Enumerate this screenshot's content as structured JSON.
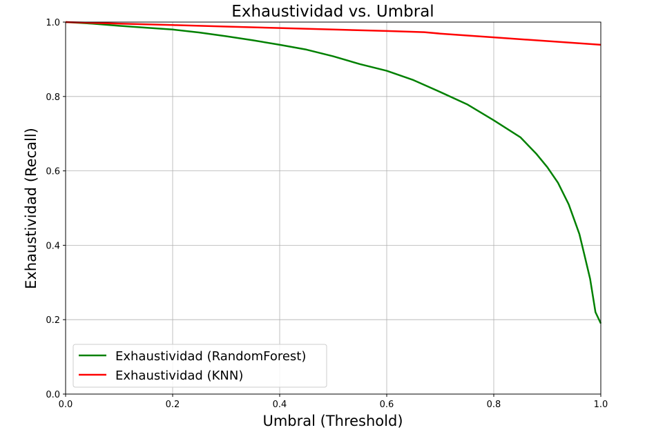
{
  "chart_data": {
    "type": "line",
    "title": "Exhaustividad vs. Umbral",
    "xlabel": "Umbral (Threshold)",
    "ylabel": "Exhaustividad (Recall)",
    "xlim": [
      0,
      1
    ],
    "ylim": [
      0,
      1
    ],
    "xticks": [
      "0.0",
      "0.2",
      "0.4",
      "0.6",
      "0.8",
      "1.0"
    ],
    "yticks": [
      "0.0",
      "0.2",
      "0.4",
      "0.6",
      "0.8",
      "1.0"
    ],
    "grid": true,
    "legend_position": "lower-left",
    "series": [
      {
        "name": "Exhaustividad (RandomForest)",
        "color": "#008000",
        "x": [
          0.0,
          0.05,
          0.1,
          0.15,
          0.2,
          0.25,
          0.3,
          0.35,
          0.4,
          0.45,
          0.5,
          0.55,
          0.6,
          0.65,
          0.7,
          0.75,
          0.8,
          0.85,
          0.88,
          0.9,
          0.92,
          0.94,
          0.95,
          0.96,
          0.97,
          0.98,
          0.99,
          1.0
        ],
        "y": [
          1.0,
          0.996,
          0.99,
          0.985,
          0.98,
          0.972,
          0.962,
          0.951,
          0.939,
          0.926,
          0.908,
          0.887,
          0.869,
          0.844,
          0.812,
          0.779,
          0.736,
          0.69,
          0.645,
          0.61,
          0.568,
          0.51,
          0.47,
          0.43,
          0.37,
          0.31,
          0.22,
          0.19
        ]
      },
      {
        "name": "Exhaustividad (KNN)",
        "color": "#ff0000",
        "x": [
          0.0,
          0.1,
          0.2,
          0.3,
          0.4,
          0.5,
          0.6,
          0.67,
          0.7,
          0.8,
          0.9,
          1.0
        ],
        "y": [
          1.0,
          0.996,
          0.992,
          0.988,
          0.984,
          0.98,
          0.976,
          0.973,
          0.969,
          0.959,
          0.949,
          0.939
        ]
      }
    ]
  }
}
